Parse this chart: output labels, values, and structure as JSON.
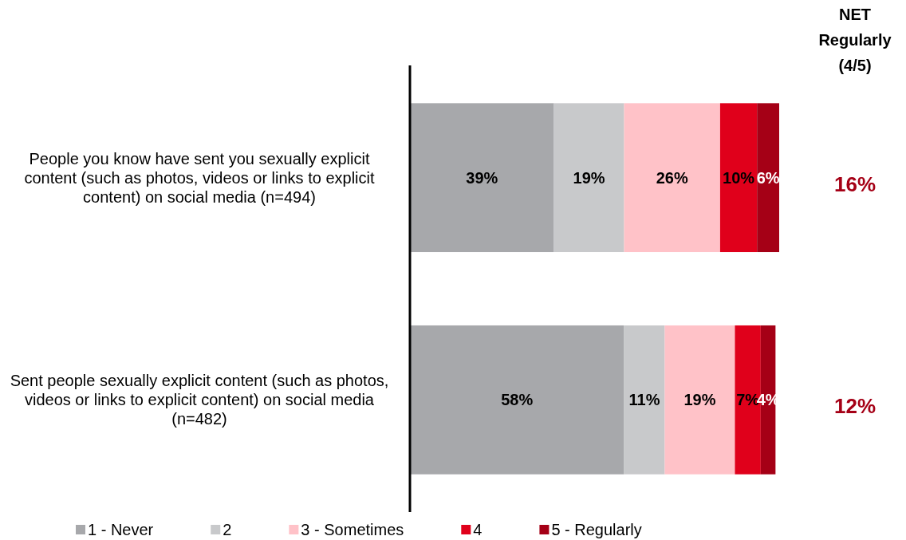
{
  "chart_data": {
    "type": "bar",
    "orientation": "horizontal",
    "stacked": true,
    "categories": [
      "People you know have sent you sexually explicit content (such as photos, videos or links to explicit content) on social media (n=494)",
      "Sent people sexually explicit content (such as photos, videos or links to explicit content) on social media (n=482)"
    ],
    "series": [
      {
        "name": "1 - Never",
        "color": "#a7a8ab",
        "values": [
          39,
          58
        ],
        "value_labels": [
          "39%",
          "58%"
        ]
      },
      {
        "name": "2",
        "color": "#c8c9cb",
        "values": [
          19,
          11
        ],
        "value_labels": [
          "19%",
          "11%"
        ]
      },
      {
        "name": "3 - Sometimes",
        "color": "#ffc2c8",
        "values": [
          26,
          19
        ],
        "value_labels": [
          "26%",
          "19%"
        ]
      },
      {
        "name": "4",
        "color": "#e0001b",
        "values": [
          10,
          7
        ],
        "value_labels": [
          "10%",
          "7%"
        ]
      },
      {
        "name": "5 - Regularly",
        "color": "#a50016",
        "values": [
          6,
          4
        ],
        "value_labels": [
          "6%",
          "4%"
        ]
      }
    ],
    "xlim": [
      0,
      100
    ],
    "tick_labels": "y",
    "legend": "bottom",
    "annotations": [
      "NET Regularly (4/5)",
      "16%",
      "12%"
    ]
  }
}
